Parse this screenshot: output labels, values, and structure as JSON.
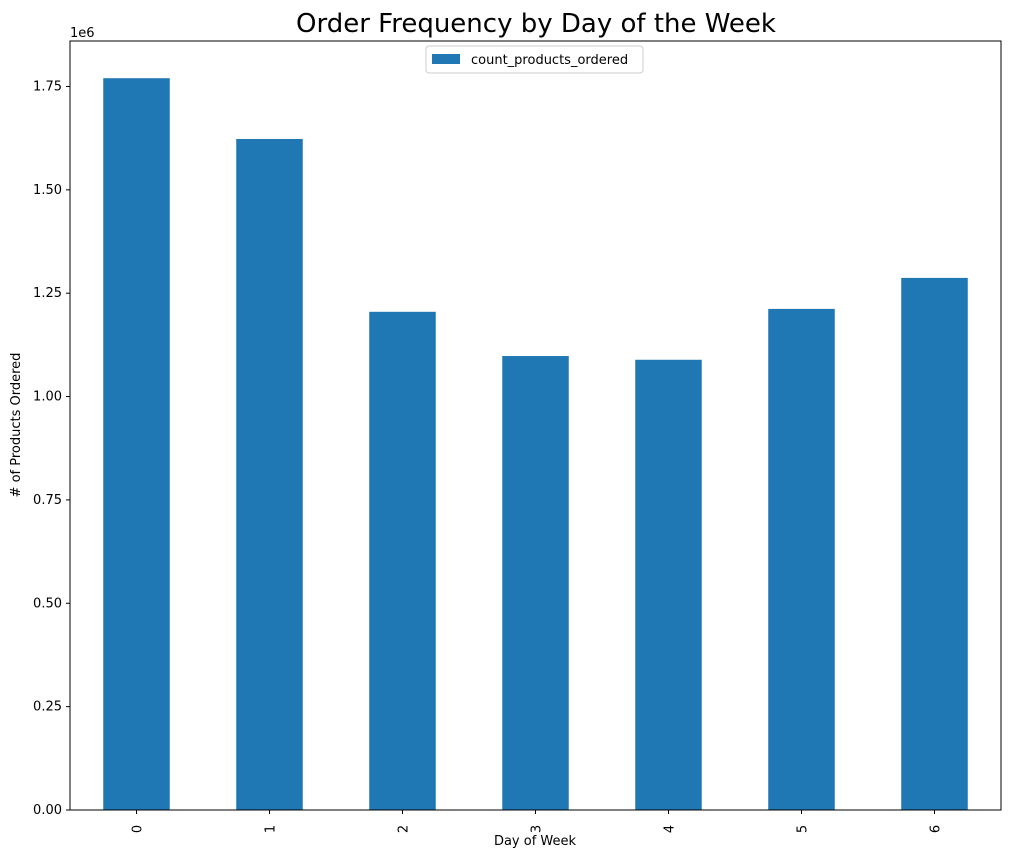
{
  "chart_data": {
    "type": "bar",
    "title": "Order Frequency by Day of the Week",
    "xlabel": "Day of Week",
    "ylabel": "# of Products Ordered",
    "y_offset_label": "1e6",
    "categories": [
      "0",
      "1",
      "2",
      "3",
      "4",
      "5",
      "6"
    ],
    "series": [
      {
        "name": "count_products_ordered",
        "values": [
          1770000,
          1623000,
          1205000,
          1098000,
          1089000,
          1212000,
          1287000
        ]
      }
    ],
    "ylim": [
      0,
      1860000
    ],
    "yticks": [
      0,
      250000,
      500000,
      750000,
      1000000,
      1250000,
      1500000,
      1750000
    ],
    "ytick_labels": [
      "0.00",
      "0.25",
      "0.50",
      "0.75",
      "1.00",
      "1.25",
      "1.50",
      "1.75"
    ],
    "legend_position": "top-center",
    "grid": false,
    "bar_color": "#1f77b4"
  }
}
